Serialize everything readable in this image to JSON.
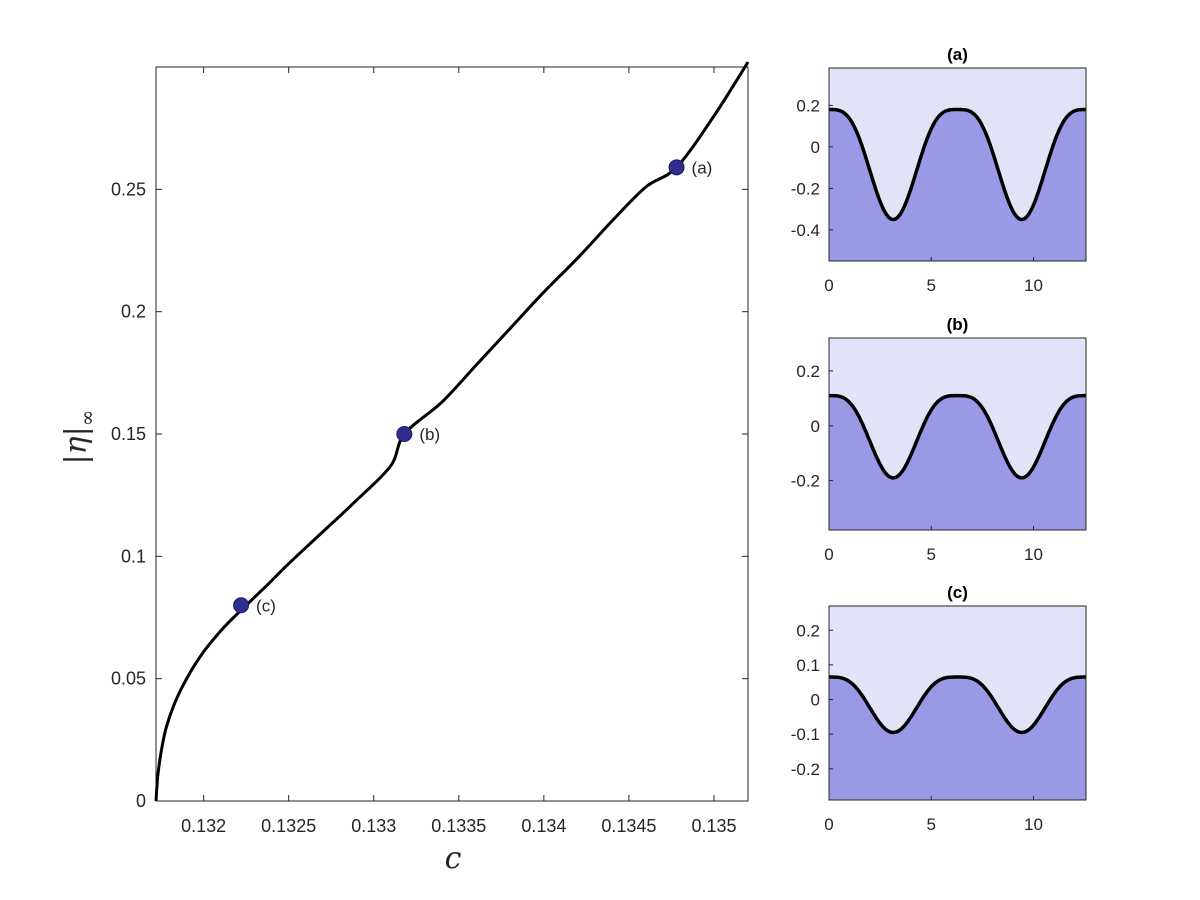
{
  "chart_data": [
    {
      "type": "line",
      "xlabel": "c",
      "ylabel": "|η|∞",
      "xlim": [
        0.13172,
        0.1352
      ],
      "ylim": [
        0,
        0.3
      ],
      "xticks": [
        0.132,
        0.1325,
        0.133,
        0.1335,
        0.134,
        0.1345,
        0.135
      ],
      "xtick_labels": [
        "0.132",
        "0.1325",
        "0.133",
        "0.1335",
        "0.134",
        "0.1345",
        "0.135"
      ],
      "yticks": [
        0,
        0.05,
        0.1,
        0.15,
        0.2,
        0.25
      ],
      "ytick_labels": [
        "0",
        "0.05",
        "0.1",
        "0.15",
        "0.2",
        "0.25"
      ],
      "grid": false,
      "line_color": "#000000",
      "series": [
        {
          "x": [
            0.13172,
            0.13173,
            0.13175,
            0.13178,
            0.13183,
            0.1319,
            0.132,
            0.13212,
            0.13225,
            0.13237,
            0.1325,
            0.1327,
            0.1329,
            0.1331,
            0.13318,
            0.1334,
            0.1336,
            0.1338,
            0.134,
            0.1342,
            0.1344,
            0.1346,
            0.13478,
            0.135,
            0.1352
          ],
          "y": [
            0,
            0.01,
            0.02,
            0.03,
            0.04,
            0.05,
            0.061,
            0.071,
            0.08,
            0.088,
            0.097,
            0.11,
            0.123,
            0.137,
            0.15,
            0.163,
            0.178,
            0.193,
            0.208,
            0.222,
            0.237,
            0.251,
            0.259,
            0.28,
            0.302
          ]
        }
      ],
      "markers": [
        {
          "label": "(a)",
          "x": 0.13478,
          "y": 0.259
        },
        {
          "label": "(b)",
          "x": 0.13318,
          "y": 0.15
        },
        {
          "label": "(c)",
          "x": 0.13222,
          "y": 0.08
        }
      ],
      "marker_color": "#2e2e8e"
    },
    {
      "type": "area",
      "title": "(a)",
      "xlim": [
        0,
        12.566
      ],
      "ylim": [
        -0.55,
        0.38
      ],
      "xticks": [
        0,
        5,
        10
      ],
      "xtick_labels": [
        "0",
        "5",
        "10"
      ],
      "yticks": [
        0.2,
        0,
        -0.2,
        -0.4
      ],
      "ytick_labels": [
        "0.2",
        "0",
        "-0.2",
        "-0.4"
      ],
      "crest": 0.18,
      "trough": -0.35,
      "troughs_at": [
        3.1416,
        9.4248
      ],
      "water_color": "#9999e6",
      "air_color": "#e3e3f7"
    },
    {
      "type": "area",
      "title": "(b)",
      "xlim": [
        0,
        12.566
      ],
      "ylim": [
        -0.38,
        0.32
      ],
      "xticks": [
        0,
        5,
        10
      ],
      "xtick_labels": [
        "0",
        "5",
        "10"
      ],
      "yticks": [
        0.2,
        0,
        -0.2
      ],
      "ytick_labels": [
        "0.2",
        "0",
        "-0.2"
      ],
      "crest": 0.11,
      "trough": -0.19,
      "troughs_at": [
        3.1416,
        9.4248
      ],
      "water_color": "#9999e6",
      "air_color": "#e3e3f7"
    },
    {
      "type": "area",
      "title": "(c)",
      "xlim": [
        0,
        12.566
      ],
      "ylim": [
        -0.29,
        0.27
      ],
      "xticks": [
        0,
        5,
        10
      ],
      "xtick_labels": [
        "0",
        "5",
        "10"
      ],
      "yticks": [
        0.2,
        0.1,
        0,
        -0.1,
        -0.2
      ],
      "ytick_labels": [
        "0.2",
        "0.1",
        "0",
        "-0.1",
        "-0.2"
      ],
      "crest": 0.065,
      "trough": -0.095,
      "troughs_at": [
        3.1416,
        9.4248
      ],
      "water_color": "#9999e6",
      "air_color": "#e3e3f7"
    }
  ]
}
